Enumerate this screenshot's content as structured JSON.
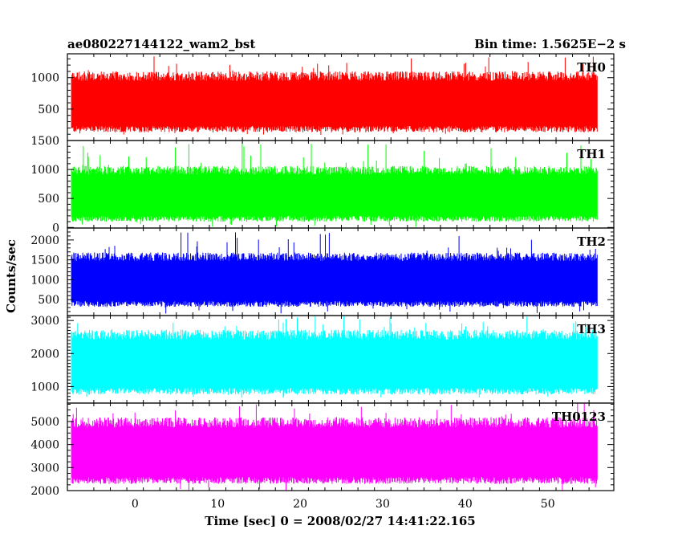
{
  "header": {
    "title": "ae080227144122_wam2_bst",
    "bin_time": "Bin time: 1.5625E−2 s"
  },
  "chart_data": {
    "type": "line",
    "xlabel": "Time [sec] 0 = 2008/02/27 14:41:22.165",
    "ylabel": "Counts/sec",
    "xlim": [
      -8.2,
      58
    ],
    "data_xrange": [
      -7.7,
      56
    ],
    "xticks": [
      0,
      10,
      20,
      30,
      40,
      50
    ],
    "grid": false,
    "panels": [
      {
        "name": "TH0",
        "color": "#ff0000",
        "ylim": [
          0,
          1380
        ],
        "yticks": [
          500,
          1000
        ],
        "typical_low": 200,
        "typical_high": 1040,
        "min": 80,
        "max": 1350
      },
      {
        "name": "TH1",
        "color": "#00ff00",
        "ylim": [
          -10,
          1500
        ],
        "yticks": [
          0,
          500,
          1000,
          1500
        ],
        "typical_low": 170,
        "typical_high": 1000,
        "min": 10,
        "max": 1460
      },
      {
        "name": "TH2",
        "color": "#0000ff",
        "ylim": [
          100,
          2300
        ],
        "yticks": [
          500,
          1000,
          1500,
          2000
        ],
        "typical_low": 420,
        "typical_high": 1600,
        "min": 150,
        "max": 2200
      },
      {
        "name": "TH3",
        "color": "#00ffff",
        "ylim": [
          500,
          3150
        ],
        "yticks": [
          1000,
          2000,
          3000
        ],
        "typical_low": 900,
        "typical_high": 2600,
        "min": 650,
        "max": 3150
      },
      {
        "name": "TH0123",
        "color": "#ff00ff",
        "ylim": [
          2000,
          5800
        ],
        "yticks": [
          2000,
          3000,
          4000,
          5000
        ],
        "typical_low": 2500,
        "typical_high": 5000,
        "min": 2000,
        "max": 5800
      }
    ]
  }
}
